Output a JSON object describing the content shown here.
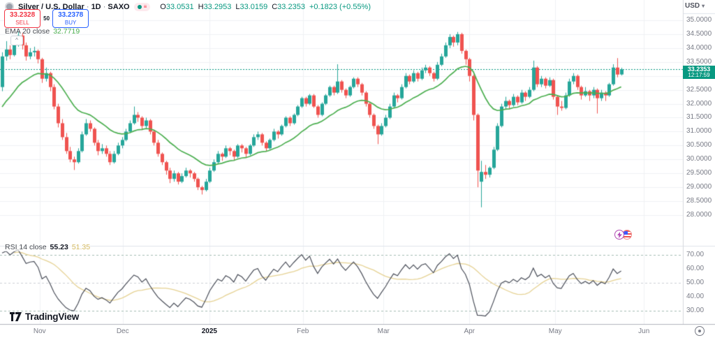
{
  "header": {
    "symbol": "Silver / U.S. Dollar",
    "sep1": "·",
    "interval": "1D",
    "sep2": "·",
    "exchange": "SAXO",
    "ohlc": {
      "o_label": "O",
      "o": "33.0531",
      "h_label": "H",
      "h": "33.2953",
      "l_label": "L",
      "l": "33.0159",
      "c_label": "C",
      "c": "33.2353",
      "change": "+0.1823 (+0.55%)"
    }
  },
  "trade_panel": {
    "sell_price": "33.2328",
    "sell_label": "SELL",
    "spread": "50",
    "buy_price": "33.2378",
    "buy_label": "BUY",
    "collapse_glyph": "^"
  },
  "indicators": {
    "ema": {
      "label": "EMA 20 close",
      "value": "32.7719"
    },
    "rsi": {
      "label": "RSI 14 close",
      "value": "55.23",
      "ma_value": "51.35"
    }
  },
  "price_axis": {
    "currency": "USD",
    "caret": "▾",
    "ticks": [
      [
        "35.0000",
        35
      ],
      [
        "34.5000",
        34.5
      ],
      [
        "34.0000",
        34
      ],
      [
        "33.5000",
        33.5
      ],
      [
        "32.5000",
        32.5
      ],
      [
        "32.0000",
        32
      ],
      [
        "31.5000",
        31.5
      ],
      [
        "31.0000",
        31
      ],
      [
        "30.5000",
        30.5
      ],
      [
        "30.0000",
        30
      ],
      [
        "29.5000",
        29.5
      ],
      [
        "29.0000",
        29
      ],
      [
        "28.5000",
        28.5
      ],
      [
        "28.0000",
        28
      ]
    ],
    "last_price": "33.2353",
    "countdown": "12:17:59"
  },
  "rsi_axis": {
    "ticks": [
      [
        "70.00",
        70
      ],
      [
        "60.00",
        60
      ],
      [
        "50.00",
        50
      ],
      [
        "40.00",
        40
      ],
      [
        "30.00",
        30
      ]
    ]
  },
  "time_axis": {
    "labels": [
      {
        "label": "Nov",
        "index": 9.4
      },
      {
        "label": "Dec",
        "index": 30.2
      },
      {
        "label": "2025",
        "index": 51.9,
        "bold": true
      },
      {
        "label": "Feb",
        "index": 75.3
      },
      {
        "label": "Mar",
        "index": 95.5
      },
      {
        "label": "Apr",
        "index": 117.0
      },
      {
        "label": "May",
        "index": 138.5
      },
      {
        "label": "Jun",
        "index": 160.7
      }
    ]
  },
  "watermark": "TradingView",
  "colors": {
    "up": "#26a69a",
    "down": "#ef5350",
    "ema": "#4caf50",
    "rsi_line": "#4a4e59",
    "rsi_ma": "#e6d293",
    "band": "#a3bdb4",
    "band_mid": "#cdd0d6",
    "last_price": "#089981",
    "sell": "#f23645",
    "buy": "#2962ff",
    "grid": "#f0f2f5",
    "separator": "#e0e3eb",
    "axis_border": "#b2b5be",
    "text": "#131722",
    "muted": "#787b86"
  },
  "chart_data": {
    "type": "candlestick",
    "title": "Silver / U.S. Dollar · 1D · SAXO",
    "price_axis_range": [
      26.9,
      35.73
    ],
    "price_grid_step": 0.5,
    "last_price": 33.2353,
    "overlay": {
      "name": "EMA",
      "period": 20,
      "last_value": 32.7719
    },
    "lower_panel": {
      "name": "RSI",
      "period": 14,
      "last_value": 55.23,
      "ma_period": 14,
      "ma_last_value": 51.35,
      "bands": [
        70,
        50,
        30
      ],
      "axis_range": [
        25,
        77
      ]
    },
    "candles_format": [
      "open",
      "high",
      "low",
      "close"
    ],
    "candles": [
      [
        32.6,
        33.85,
        32.45,
        33.7
      ],
      [
        33.7,
        34.25,
        33.55,
        33.95
      ],
      [
        33.95,
        34.1,
        33.6,
        33.75
      ],
      [
        33.75,
        34.3,
        33.7,
        34.15
      ],
      [
        34.15,
        34.6,
        34.05,
        34.45
      ],
      [
        34.45,
        34.55,
        33.95,
        34.1
      ],
      [
        34.1,
        34.2,
        33.55,
        33.7
      ],
      [
        33.7,
        34.0,
        33.6,
        33.85
      ],
      [
        33.85,
        34.05,
        33.7,
        33.9
      ],
      [
        33.9,
        33.95,
        33.45,
        33.6
      ],
      [
        33.6,
        33.65,
        32.75,
        32.9
      ],
      [
        32.9,
        33.3,
        32.8,
        33.1
      ],
      [
        33.1,
        33.15,
        32.45,
        32.6
      ],
      [
        32.6,
        32.7,
        31.8,
        31.9
      ],
      [
        31.9,
        32.0,
        31.15,
        31.3
      ],
      [
        31.3,
        31.45,
        30.7,
        30.8
      ],
      [
        30.8,
        30.95,
        30.2,
        30.3
      ],
      [
        30.3,
        30.45,
        29.9,
        30.0
      ],
      [
        30.0,
        30.1,
        29.62,
        29.9
      ],
      [
        29.9,
        30.4,
        29.85,
        30.3
      ],
      [
        30.3,
        31.0,
        30.25,
        30.9
      ],
      [
        30.9,
        31.45,
        30.85,
        31.3
      ],
      [
        31.3,
        31.4,
        31.0,
        31.1
      ],
      [
        31.1,
        31.15,
        30.5,
        30.6
      ],
      [
        30.6,
        30.7,
        30.15,
        30.3
      ],
      [
        30.3,
        30.55,
        30.2,
        30.4
      ],
      [
        30.4,
        30.5,
        30.1,
        30.2
      ],
      [
        30.2,
        30.3,
        29.8,
        29.9
      ],
      [
        29.9,
        30.3,
        29.85,
        30.2
      ],
      [
        30.2,
        30.6,
        30.15,
        30.5
      ],
      [
        30.5,
        30.8,
        30.4,
        30.7
      ],
      [
        30.7,
        31.1,
        30.65,
        31.0
      ],
      [
        31.0,
        31.4,
        30.95,
        31.3
      ],
      [
        31.3,
        31.9,
        31.25,
        31.6
      ],
      [
        31.6,
        31.7,
        31.35,
        31.5
      ],
      [
        31.5,
        31.55,
        31.05,
        31.2
      ],
      [
        31.2,
        31.5,
        31.1,
        31.4
      ],
      [
        31.4,
        31.45,
        30.9,
        31.0
      ],
      [
        31.0,
        31.05,
        30.5,
        30.6
      ],
      [
        30.6,
        30.7,
        30.1,
        30.2
      ],
      [
        30.2,
        30.25,
        29.8,
        29.9
      ],
      [
        29.9,
        29.95,
        29.45,
        29.6
      ],
      [
        29.6,
        29.7,
        29.15,
        29.3
      ],
      [
        29.3,
        29.6,
        29.2,
        29.5
      ],
      [
        29.5,
        29.55,
        29.1,
        29.2
      ],
      [
        29.2,
        29.5,
        29.15,
        29.4
      ],
      [
        29.4,
        29.7,
        29.35,
        29.6
      ],
      [
        29.6,
        29.65,
        29.35,
        29.5
      ],
      [
        29.5,
        29.55,
        29.2,
        29.3
      ],
      [
        29.3,
        29.35,
        28.9,
        29.0
      ],
      [
        29.0,
        29.05,
        28.74,
        28.9
      ],
      [
        28.9,
        29.3,
        28.85,
        29.2
      ],
      [
        29.2,
        29.7,
        29.15,
        29.6
      ],
      [
        29.6,
        30.0,
        29.55,
        29.9
      ],
      [
        29.9,
        30.3,
        29.85,
        30.2
      ],
      [
        30.2,
        30.25,
        29.95,
        30.1
      ],
      [
        30.1,
        30.5,
        30.05,
        30.4
      ],
      [
        30.4,
        30.45,
        30.15,
        30.3
      ],
      [
        30.3,
        30.35,
        29.95,
        30.1
      ],
      [
        30.1,
        30.55,
        30.05,
        30.5
      ],
      [
        30.5,
        30.55,
        30.25,
        30.4
      ],
      [
        30.4,
        30.45,
        30.05,
        30.2
      ],
      [
        30.2,
        30.55,
        30.15,
        30.5
      ],
      [
        30.5,
        30.9,
        30.45,
        30.8
      ],
      [
        30.8,
        31.0,
        30.7,
        30.9
      ],
      [
        30.9,
        30.95,
        30.5,
        30.6
      ],
      [
        30.6,
        30.65,
        30.3,
        30.4
      ],
      [
        30.4,
        30.75,
        30.35,
        30.7
      ],
      [
        30.7,
        31.1,
        30.65,
        31.0
      ],
      [
        31.0,
        31.05,
        30.75,
        30.9
      ],
      [
        30.9,
        31.25,
        30.85,
        31.2
      ],
      [
        31.2,
        31.55,
        31.15,
        31.5
      ],
      [
        31.5,
        31.55,
        31.2,
        31.3
      ],
      [
        31.3,
        31.65,
        31.25,
        31.6
      ],
      [
        31.6,
        31.95,
        31.55,
        31.9
      ],
      [
        31.9,
        32.25,
        31.85,
        32.2
      ],
      [
        32.2,
        32.25,
        31.9,
        32.0
      ],
      [
        32.0,
        32.35,
        31.95,
        32.3
      ],
      [
        32.3,
        32.35,
        31.85,
        31.9
      ],
      [
        31.9,
        31.95,
        31.5,
        31.6
      ],
      [
        31.6,
        32.05,
        31.55,
        32.0
      ],
      [
        32.0,
        32.35,
        31.95,
        32.3
      ],
      [
        32.3,
        32.65,
        32.25,
        32.6
      ],
      [
        32.6,
        32.65,
        32.3,
        32.4
      ],
      [
        32.4,
        33.42,
        32.35,
        32.8
      ],
      [
        32.8,
        32.85,
        32.4,
        32.5
      ],
      [
        32.5,
        32.55,
        32.2,
        32.3
      ],
      [
        32.3,
        32.65,
        32.25,
        32.6
      ],
      [
        32.6,
        32.95,
        32.55,
        32.9
      ],
      [
        32.9,
        32.95,
        32.6,
        32.7
      ],
      [
        32.7,
        32.75,
        32.3,
        32.4
      ],
      [
        32.4,
        32.45,
        31.9,
        32.0
      ],
      [
        32.0,
        32.05,
        31.5,
        31.6
      ],
      [
        31.6,
        31.65,
        31.1,
        31.2
      ],
      [
        31.2,
        31.25,
        30.55,
        30.9
      ],
      [
        30.9,
        31.3,
        30.85,
        31.2
      ],
      [
        31.2,
        31.6,
        31.15,
        31.5
      ],
      [
        31.5,
        32.0,
        31.45,
        31.9
      ],
      [
        31.9,
        32.4,
        31.85,
        32.3
      ],
      [
        32.3,
        32.35,
        32.05,
        32.2
      ],
      [
        32.2,
        32.7,
        32.15,
        32.6
      ],
      [
        32.6,
        33.1,
        32.55,
        33.0
      ],
      [
        33.0,
        33.05,
        32.7,
        32.8
      ],
      [
        32.8,
        33.2,
        32.75,
        33.1
      ],
      [
        33.1,
        33.15,
        32.8,
        32.9
      ],
      [
        32.9,
        33.3,
        32.85,
        33.2
      ],
      [
        33.2,
        33.4,
        33.1,
        33.3
      ],
      [
        33.3,
        33.35,
        33.0,
        33.1
      ],
      [
        33.1,
        33.15,
        32.8,
        32.9
      ],
      [
        32.9,
        33.5,
        32.85,
        33.4
      ],
      [
        33.4,
        33.8,
        33.35,
        33.7
      ],
      [
        33.7,
        34.2,
        33.65,
        34.1
      ],
      [
        34.1,
        34.5,
        34.0,
        34.4
      ],
      [
        34.4,
        34.45,
        34.05,
        34.2
      ],
      [
        34.2,
        34.58,
        34.1,
        34.5
      ],
      [
        34.5,
        34.55,
        33.8,
        33.9
      ],
      [
        33.9,
        33.95,
        33.4,
        33.6
      ],
      [
        33.6,
        33.65,
        32.8,
        33.0
      ],
      [
        33.0,
        33.05,
        31.4,
        31.6
      ],
      [
        31.6,
        31.65,
        29.0,
        29.6
      ],
      [
        29.2,
        29.95,
        28.28,
        29.55
      ],
      [
        29.55,
        29.8,
        29.3,
        29.45
      ],
      [
        29.45,
        29.75,
        29.35,
        29.7
      ],
      [
        29.7,
        30.45,
        29.65,
        30.35
      ],
      [
        30.35,
        31.3,
        30.3,
        31.2
      ],
      [
        31.2,
        32.0,
        31.15,
        31.9
      ],
      [
        31.9,
        32.25,
        31.8,
        32.1
      ],
      [
        32.1,
        32.15,
        31.8,
        31.95
      ],
      [
        31.95,
        32.35,
        31.9,
        32.25
      ],
      [
        32.25,
        32.3,
        31.95,
        32.05
      ],
      [
        32.05,
        32.5,
        32.0,
        32.4
      ],
      [
        32.4,
        32.45,
        32.1,
        32.25
      ],
      [
        32.25,
        32.6,
        32.2,
        32.5
      ],
      [
        32.5,
        33.55,
        32.45,
        33.3
      ],
      [
        33.3,
        33.35,
        32.6,
        32.7
      ],
      [
        32.7,
        33.0,
        32.6,
        32.9
      ],
      [
        32.9,
        32.95,
        32.55,
        32.65
      ],
      [
        32.65,
        32.95,
        32.6,
        32.85
      ],
      [
        32.85,
        32.9,
        32.15,
        32.25
      ],
      [
        32.25,
        32.3,
        31.6,
        31.9
      ],
      [
        31.9,
        32.1,
        31.75,
        31.85
      ],
      [
        31.85,
        32.4,
        31.8,
        32.3
      ],
      [
        32.3,
        32.9,
        32.25,
        32.8
      ],
      [
        32.8,
        33.1,
        32.7,
        33.0
      ],
      [
        33.0,
        33.05,
        32.5,
        32.6
      ],
      [
        32.6,
        32.65,
        32.15,
        32.3
      ],
      [
        32.3,
        32.6,
        32.25,
        32.45
      ],
      [
        32.45,
        32.5,
        32.1,
        32.3
      ],
      [
        32.3,
        32.6,
        32.2,
        32.5
      ],
      [
        32.5,
        32.55,
        31.65,
        32.2
      ],
      [
        32.2,
        32.5,
        32.1,
        32.4
      ],
      [
        32.4,
        32.45,
        32.1,
        32.3
      ],
      [
        32.3,
        32.75,
        32.25,
        32.7
      ],
      [
        32.7,
        33.42,
        32.65,
        33.3
      ],
      [
        33.3,
        33.64,
        32.95,
        33.05
      ],
      [
        33.0531,
        33.2953,
        33.0159,
        33.2353
      ]
    ]
  }
}
